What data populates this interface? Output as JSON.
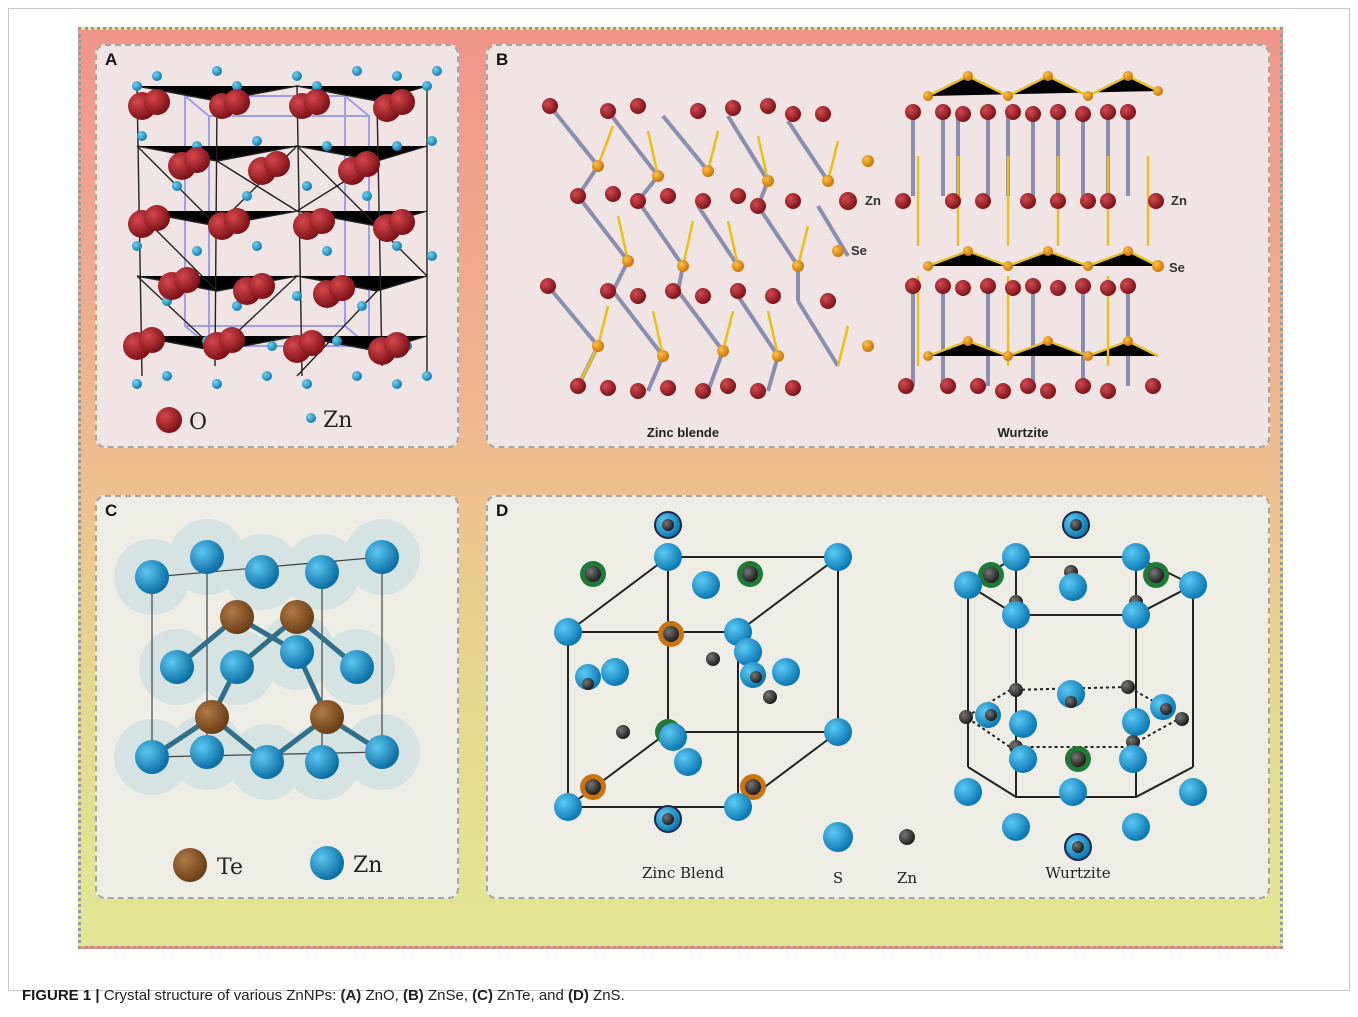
{
  "panels": {
    "a": {
      "label": "A",
      "legend": [
        "O",
        "Zn"
      ]
    },
    "b": {
      "label": "B",
      "atom_labels": [
        "Zn",
        "Se",
        "Zn",
        "Se"
      ],
      "structures": [
        "Zinc blende",
        "Wurtzite"
      ]
    },
    "c": {
      "label": "C",
      "legend": [
        "Te",
        "Zn"
      ]
    },
    "d": {
      "label": "D",
      "structures": [
        "Zinc Blend",
        "Wurtzite"
      ],
      "legend": [
        "S",
        "Zn"
      ]
    }
  },
  "caption": {
    "figure": "FIGURE 1 |",
    "text": " Crystal structure of various ZnNPs: ",
    "a_ref": "(A)",
    "a_name": " ZnO, ",
    "b_ref": "(B)",
    "b_name": " ZnSe, ",
    "c_ref": "(C)",
    "c_name": " ZnTe, and ",
    "d_ref": "(D)",
    "d_name": " ZnS."
  },
  "colors": {
    "oxygen": "#a31e24",
    "zinc_small": "#1fa3d8",
    "selenium": "#e8960e",
    "tellurium": "#8a5526",
    "zinc_ball": "#1a9fdc",
    "sulfur": "#1a9fdc",
    "zinc_dark": "#3a3a3a"
  }
}
